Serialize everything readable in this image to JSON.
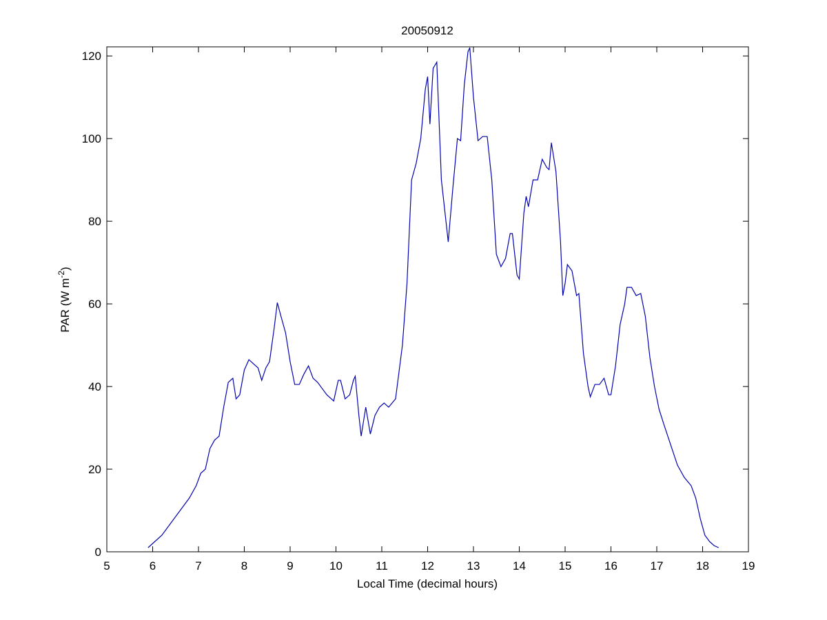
{
  "chart_data": {
    "type": "line",
    "title": "20050912",
    "xlabel": "Local Time (decimal hours)",
    "ylabel": [
      "PAR (W m",
      "-2",
      ")"
    ],
    "xlim": [
      5,
      19
    ],
    "xticks": [
      5,
      6,
      7,
      8,
      9,
      10,
      11,
      12,
      13,
      14,
      15,
      16,
      17,
      18,
      19
    ],
    "ylim": [
      0,
      122.2
    ],
    "yticks": [
      0,
      20,
      40,
      60,
      80,
      100,
      120
    ],
    "grid": false,
    "series": [
      {
        "color": "#0000b0",
        "x": [
          5.9,
          6.0,
          6.2,
          6.4,
          6.6,
          6.8,
          6.95,
          7.05,
          7.15,
          7.25,
          7.35,
          7.45,
          7.55,
          7.65,
          7.75,
          7.82,
          7.9,
          8.0,
          8.1,
          8.2,
          8.3,
          8.38,
          8.47,
          8.55,
          8.65,
          8.72,
          8.8,
          8.9,
          9.0,
          9.1,
          9.2,
          9.3,
          9.4,
          9.5,
          9.6,
          9.7,
          9.8,
          9.9,
          9.95,
          10.05,
          10.1,
          10.2,
          10.3,
          10.38,
          10.42,
          10.5,
          10.55,
          10.65,
          10.75,
          10.85,
          10.95,
          11.05,
          11.15,
          11.3,
          11.45,
          11.55,
          11.65,
          11.75,
          11.85,
          11.95,
          12.0,
          12.05,
          12.12,
          12.2,
          12.3,
          12.4,
          12.45,
          12.55,
          12.65,
          12.72,
          12.8,
          12.88,
          12.92,
          13.0,
          13.1,
          13.2,
          13.3,
          13.4,
          13.5,
          13.6,
          13.7,
          13.8,
          13.85,
          13.95,
          14.0,
          14.1,
          14.15,
          14.2,
          14.3,
          14.4,
          14.5,
          14.6,
          14.65,
          14.7,
          14.8,
          14.9,
          14.95,
          15.0,
          15.05,
          15.15,
          15.25,
          15.3,
          15.4,
          15.5,
          15.55,
          15.65,
          15.75,
          15.85,
          15.95,
          16.0,
          16.1,
          16.2,
          16.3,
          16.35,
          16.45,
          16.55,
          16.65,
          16.75,
          16.85,
          16.95,
          17.05,
          17.15,
          17.3,
          17.45,
          17.6,
          17.75,
          17.85,
          17.95,
          18.05,
          18.15,
          18.25,
          18.35
        ],
        "values": [
          1,
          2,
          4,
          7,
          10,
          13,
          16,
          19,
          20,
          25,
          27,
          28,
          35,
          41,
          42,
          37,
          38,
          44,
          46.5,
          45.5,
          44.5,
          41.5,
          44.5,
          46,
          54,
          60.3,
          57,
          53,
          46,
          40.5,
          40.5,
          43,
          45,
          42,
          41,
          39.5,
          38,
          37,
          36.5,
          41.5,
          41.5,
          37,
          38,
          41.5,
          42.5,
          33,
          28,
          35,
          28.5,
          33,
          35,
          36,
          35,
          37,
          50,
          65,
          90,
          94,
          100,
          112,
          115,
          103.5,
          117,
          118.5,
          90,
          80,
          75,
          88,
          100,
          99.5,
          113,
          121,
          122,
          110,
          99.5,
          100.5,
          100.5,
          90,
          72,
          69,
          71,
          77,
          77,
          67,
          66,
          82,
          86,
          83.5,
          90,
          90,
          95,
          93,
          92.5,
          99,
          92,
          75,
          62,
          65,
          69.5,
          68,
          62,
          62.5,
          48,
          40,
          37.5,
          40.5,
          40.5,
          42,
          38,
          38,
          45,
          55,
          60,
          64,
          64,
          62,
          62.5,
          57,
          47,
          40,
          34.5,
          31,
          26,
          21,
          18,
          16,
          13,
          8,
          4,
          2.5,
          1.5,
          1
        ]
      }
    ]
  }
}
